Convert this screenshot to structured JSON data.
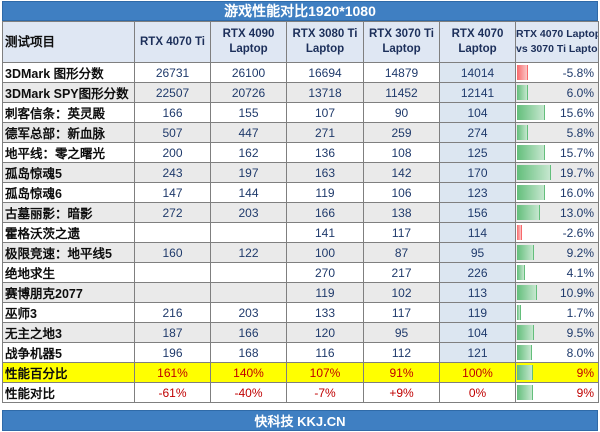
{
  "title": "游戏性能对比1920*1080",
  "footer": "快科技 KKJ.CN",
  "colors": {
    "header_bar": "#3f7fc2",
    "highlight_row": "#ffff00",
    "positive_bar": "#63be7b",
    "negative_bar": "#f8696b",
    "red_text": "#c00000"
  },
  "headers": {
    "item": "测试项目",
    "gpus": [
      [
        "RTX 4070 Ti",
        ""
      ],
      [
        "RTX 4090",
        "Laptop"
      ],
      [
        "RTX 3080 Ti",
        "Laptop"
      ],
      [
        "RTX 3070 Ti",
        "Laptop"
      ],
      [
        "RTX 4070",
        "Laptop"
      ]
    ],
    "compare": [
      "RTX 4070 Laptop",
      "vs 3070 Ti Laptop"
    ]
  },
  "rows": [
    {
      "name": "3DMark 图形分数",
      "vals": [
        "26731",
        "26100",
        "16694",
        "14879",
        "14014"
      ],
      "diff": "-5.8%",
      "diff_value": -5.8
    },
    {
      "name": "3DMark SPY图形分数",
      "vals": [
        "22507",
        "20726",
        "13718",
        "11452",
        "12141"
      ],
      "diff": "6.0%",
      "diff_value": 6.0
    },
    {
      "name": "刺客信条：英灵殿",
      "vals": [
        "166",
        "155",
        "107",
        "90",
        "104"
      ],
      "diff": "15.6%",
      "diff_value": 15.6
    },
    {
      "name": "德军总部：新血脉",
      "vals": [
        "507",
        "447",
        "271",
        "259",
        "274"
      ],
      "diff": "5.8%",
      "diff_value": 5.8
    },
    {
      "name": "地平线：零之曙光",
      "vals": [
        "200",
        "162",
        "136",
        "108",
        "125"
      ],
      "diff": "15.7%",
      "diff_value": 15.7
    },
    {
      "name": "孤岛惊魂5",
      "vals": [
        "243",
        "197",
        "163",
        "142",
        "170"
      ],
      "diff": "19.7%",
      "diff_value": 19.7
    },
    {
      "name": "孤岛惊魂6",
      "vals": [
        "147",
        "144",
        "119",
        "106",
        "123"
      ],
      "diff": "16.0%",
      "diff_value": 16.0
    },
    {
      "name": "古墓丽影：暗影",
      "vals": [
        "272",
        "203",
        "166",
        "138",
        "156"
      ],
      "diff": "13.0%",
      "diff_value": 13.0
    },
    {
      "name": "霍格沃茨之遗",
      "vals": [
        "",
        "",
        "141",
        "117",
        "114"
      ],
      "diff": "-2.6%",
      "diff_value": -2.6
    },
    {
      "name": "极限竞速：地平线5",
      "vals": [
        "160",
        "122",
        "100",
        "87",
        "95"
      ],
      "diff": "9.2%",
      "diff_value": 9.2
    },
    {
      "name": "绝地求生",
      "vals": [
        "",
        "",
        "270",
        "217",
        "226"
      ],
      "diff": "4.1%",
      "diff_value": 4.1
    },
    {
      "name": "赛博朋克2077",
      "vals": [
        "",
        "",
        "119",
        "102",
        "113"
      ],
      "diff": "10.9%",
      "diff_value": 10.9
    },
    {
      "name": "巫师3",
      "vals": [
        "216",
        "203",
        "133",
        "117",
        "119"
      ],
      "diff": "1.7%",
      "diff_value": 1.7
    },
    {
      "name": "无主之地3",
      "vals": [
        "187",
        "166",
        "120",
        "95",
        "104"
      ],
      "diff": "9.5%",
      "diff_value": 9.5
    },
    {
      "name": "战争机器5",
      "vals": [
        "196",
        "168",
        "116",
        "112",
        "121"
      ],
      "diff": "8.0%",
      "diff_value": 8.0
    }
  ],
  "summary": [
    {
      "name": "性能百分比",
      "vals": [
        "161%",
        "140%",
        "107%",
        "91%",
        "100%"
      ],
      "diff": "9%"
    },
    {
      "name": "性能对比",
      "vals": [
        "-61%",
        "-40%",
        "-7%",
        "+9%",
        "0%"
      ],
      "diff": "9%"
    }
  ]
}
